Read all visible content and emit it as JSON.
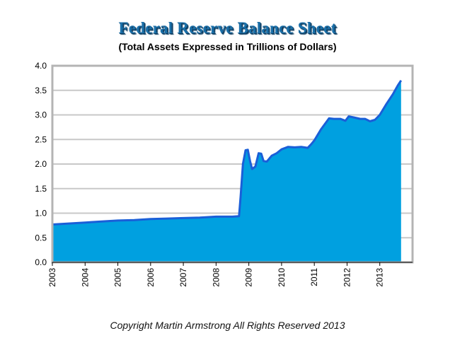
{
  "chart_data": {
    "type": "area",
    "title": "Federal Reserve Balance Sheet",
    "subtitle": "(Total Assets Expressed in Trillions of Dollars)",
    "xlabel": "",
    "ylabel": "",
    "xlim": [
      2003.0,
      2014.0
    ],
    "ylim": [
      0,
      4.0
    ],
    "grid": true,
    "legend": "none",
    "colors": {
      "fill": "#00a0e0",
      "line": "#1a5fd8",
      "grid": "#c8c8c8",
      "frame": "#b4b4b4"
    },
    "x_ticks": [
      "2003",
      "2004",
      "2005",
      "2006",
      "2007",
      "2008",
      "2009",
      "2010",
      "2011",
      "2012",
      "2013"
    ],
    "y_ticks": [
      "0.0",
      "0.5",
      "1.0",
      "1.5",
      "2.0",
      "2.5",
      "3.0",
      "3.5",
      "4.0"
    ],
    "series": [
      {
        "x": [
          2003.0,
          2003.5,
          2004.0,
          2004.5,
          2005.0,
          2005.5,
          2006.0,
          2006.5,
          2007.0,
          2007.5,
          2008.0,
          2008.5,
          2008.7,
          2008.75,
          2008.82,
          2008.9,
          2008.97,
          2009.04,
          2009.1,
          2009.2,
          2009.3,
          2009.38,
          2009.45,
          2009.55,
          2009.7,
          2009.85,
          2010.0,
          2010.2,
          2010.4,
          2010.6,
          2010.8,
          2010.9,
          2011.0,
          2011.2,
          2011.45,
          2011.6,
          2011.8,
          2011.95,
          2012.05,
          2012.2,
          2012.4,
          2012.55,
          2012.7,
          2012.85,
          2013.0,
          2013.2,
          2013.4,
          2013.55,
          2013.65
        ],
        "y": [
          0.77,
          0.79,
          0.81,
          0.83,
          0.85,
          0.86,
          0.88,
          0.89,
          0.9,
          0.91,
          0.93,
          0.93,
          0.94,
          1.35,
          2.0,
          2.28,
          2.29,
          2.05,
          1.9,
          1.95,
          2.22,
          2.21,
          2.06,
          2.05,
          2.17,
          2.22,
          2.3,
          2.35,
          2.34,
          2.35,
          2.33,
          2.4,
          2.48,
          2.7,
          2.93,
          2.92,
          2.92,
          2.88,
          2.97,
          2.95,
          2.92,
          2.92,
          2.87,
          2.9,
          3.0,
          3.22,
          3.42,
          3.6,
          3.7
        ]
      }
    ]
  },
  "copyright": "Copyright Martin Armstrong All Rights Reserved 2013"
}
